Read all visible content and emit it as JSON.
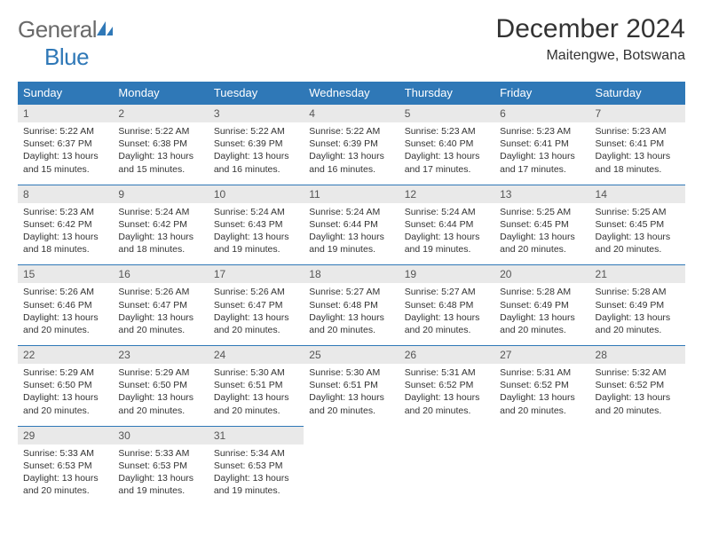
{
  "brand": {
    "part1": "General",
    "part2": "Blue"
  },
  "title": "December 2024",
  "location": "Maitengwe, Botswana",
  "colors": {
    "header_bg": "#2f78b7",
    "header_fg": "#ffffff",
    "daynum_bg": "#e9e9e9",
    "rule": "#2f78b7"
  },
  "fonts": {
    "title_size": 30,
    "subtitle_size": 16,
    "th_size": 13,
    "cell_size": 10.5
  },
  "dow": [
    "Sunday",
    "Monday",
    "Tuesday",
    "Wednesday",
    "Thursday",
    "Friday",
    "Saturday"
  ],
  "days": [
    {
      "n": 1,
      "sr": "5:22 AM",
      "ss": "6:37 PM",
      "dl": "13 hours and 15 minutes."
    },
    {
      "n": 2,
      "sr": "5:22 AM",
      "ss": "6:38 PM",
      "dl": "13 hours and 15 minutes."
    },
    {
      "n": 3,
      "sr": "5:22 AM",
      "ss": "6:39 PM",
      "dl": "13 hours and 16 minutes."
    },
    {
      "n": 4,
      "sr": "5:22 AM",
      "ss": "6:39 PM",
      "dl": "13 hours and 16 minutes."
    },
    {
      "n": 5,
      "sr": "5:23 AM",
      "ss": "6:40 PM",
      "dl": "13 hours and 17 minutes."
    },
    {
      "n": 6,
      "sr": "5:23 AM",
      "ss": "6:41 PM",
      "dl": "13 hours and 17 minutes."
    },
    {
      "n": 7,
      "sr": "5:23 AM",
      "ss": "6:41 PM",
      "dl": "13 hours and 18 minutes."
    },
    {
      "n": 8,
      "sr": "5:23 AM",
      "ss": "6:42 PM",
      "dl": "13 hours and 18 minutes."
    },
    {
      "n": 9,
      "sr": "5:24 AM",
      "ss": "6:42 PM",
      "dl": "13 hours and 18 minutes."
    },
    {
      "n": 10,
      "sr": "5:24 AM",
      "ss": "6:43 PM",
      "dl": "13 hours and 19 minutes."
    },
    {
      "n": 11,
      "sr": "5:24 AM",
      "ss": "6:44 PM",
      "dl": "13 hours and 19 minutes."
    },
    {
      "n": 12,
      "sr": "5:24 AM",
      "ss": "6:44 PM",
      "dl": "13 hours and 19 minutes."
    },
    {
      "n": 13,
      "sr": "5:25 AM",
      "ss": "6:45 PM",
      "dl": "13 hours and 20 minutes."
    },
    {
      "n": 14,
      "sr": "5:25 AM",
      "ss": "6:45 PM",
      "dl": "13 hours and 20 minutes."
    },
    {
      "n": 15,
      "sr": "5:26 AM",
      "ss": "6:46 PM",
      "dl": "13 hours and 20 minutes."
    },
    {
      "n": 16,
      "sr": "5:26 AM",
      "ss": "6:47 PM",
      "dl": "13 hours and 20 minutes."
    },
    {
      "n": 17,
      "sr": "5:26 AM",
      "ss": "6:47 PM",
      "dl": "13 hours and 20 minutes."
    },
    {
      "n": 18,
      "sr": "5:27 AM",
      "ss": "6:48 PM",
      "dl": "13 hours and 20 minutes."
    },
    {
      "n": 19,
      "sr": "5:27 AM",
      "ss": "6:48 PM",
      "dl": "13 hours and 20 minutes."
    },
    {
      "n": 20,
      "sr": "5:28 AM",
      "ss": "6:49 PM",
      "dl": "13 hours and 20 minutes."
    },
    {
      "n": 21,
      "sr": "5:28 AM",
      "ss": "6:49 PM",
      "dl": "13 hours and 20 minutes."
    },
    {
      "n": 22,
      "sr": "5:29 AM",
      "ss": "6:50 PM",
      "dl": "13 hours and 20 minutes."
    },
    {
      "n": 23,
      "sr": "5:29 AM",
      "ss": "6:50 PM",
      "dl": "13 hours and 20 minutes."
    },
    {
      "n": 24,
      "sr": "5:30 AM",
      "ss": "6:51 PM",
      "dl": "13 hours and 20 minutes."
    },
    {
      "n": 25,
      "sr": "5:30 AM",
      "ss": "6:51 PM",
      "dl": "13 hours and 20 minutes."
    },
    {
      "n": 26,
      "sr": "5:31 AM",
      "ss": "6:52 PM",
      "dl": "13 hours and 20 minutes."
    },
    {
      "n": 27,
      "sr": "5:31 AM",
      "ss": "6:52 PM",
      "dl": "13 hours and 20 minutes."
    },
    {
      "n": 28,
      "sr": "5:32 AM",
      "ss": "6:52 PM",
      "dl": "13 hours and 20 minutes."
    },
    {
      "n": 29,
      "sr": "5:33 AM",
      "ss": "6:53 PM",
      "dl": "13 hours and 20 minutes."
    },
    {
      "n": 30,
      "sr": "5:33 AM",
      "ss": "6:53 PM",
      "dl": "13 hours and 19 minutes."
    },
    {
      "n": 31,
      "sr": "5:34 AM",
      "ss": "6:53 PM",
      "dl": "13 hours and 19 minutes."
    }
  ],
  "labels": {
    "sunrise": "Sunrise:",
    "sunset": "Sunset:",
    "daylight": "Daylight:"
  },
  "first_dow": 0,
  "weeks": 5
}
